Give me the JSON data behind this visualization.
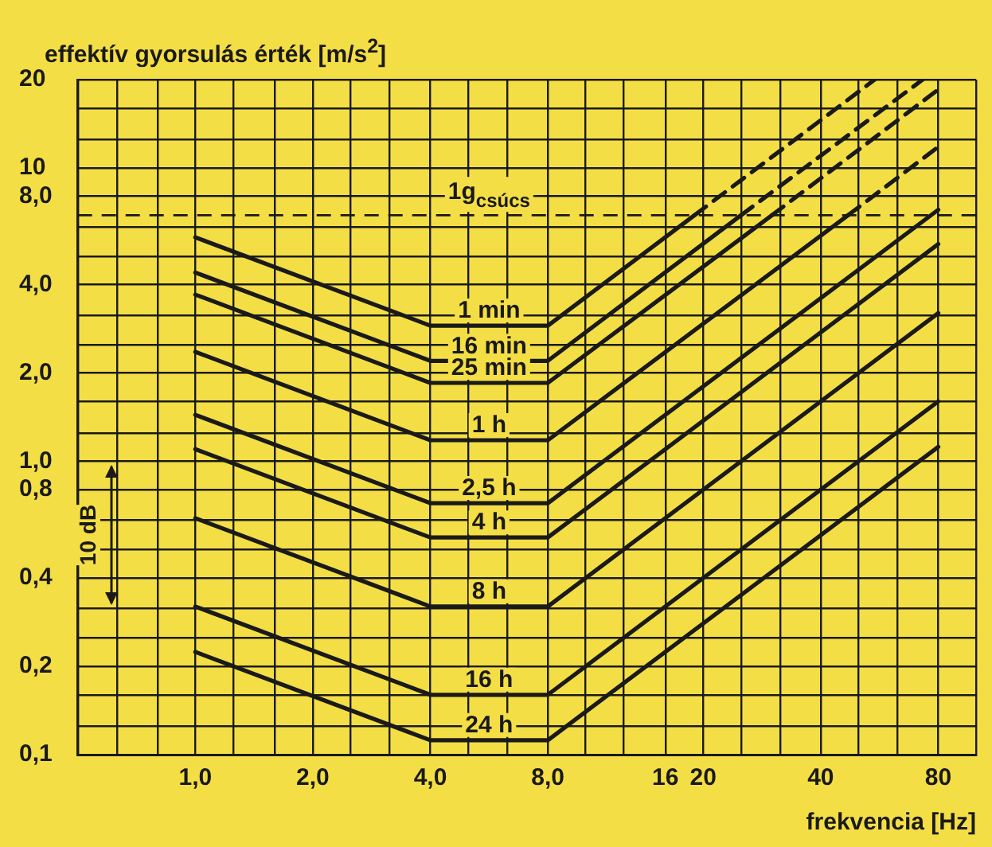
{
  "chart_data": {
    "type": "line",
    "ylabel": "effektív gyorsulás érték [m/s$^{2}$]",
    "xlabel": "frekvencia [Hz]",
    "log": "xy",
    "grid": true,
    "legend": false,
    "marker": "none",
    "xlim": [
      0.5,
      100
    ],
    "xticks": [
      {
        "value": 0.5,
        "label": null
      },
      {
        "value": 0.63,
        "label": null
      },
      {
        "value": 0.8,
        "label": null
      },
      {
        "value": 1,
        "label": "1,0"
      },
      {
        "value": 1.25,
        "label": null
      },
      {
        "value": 1.6,
        "label": null
      },
      {
        "value": 2,
        "label": "2,0"
      },
      {
        "value": 2.5,
        "label": null
      },
      {
        "value": 3.15,
        "label": null
      },
      {
        "value": 4,
        "label": "4,0"
      },
      {
        "value": 5,
        "label": null
      },
      {
        "value": 6.3,
        "label": null
      },
      {
        "value": 8,
        "label": "8,0"
      },
      {
        "value": 10,
        "label": null
      },
      {
        "value": 12.5,
        "label": null
      },
      16,
      20,
      {
        "value": 25,
        "label": null
      },
      {
        "value": 31.5,
        "label": null
      },
      40,
      {
        "value": 50,
        "label": null
      },
      {
        "value": 63,
        "label": null
      },
      80,
      {
        "value": 100,
        "label": null
      }
    ],
    "ylim": [
      0.1,
      20
    ],
    "yticks": [
      {
        "value": 0.1,
        "label": "0,1"
      },
      {
        "value": 0.125,
        "label": null
      },
      {
        "value": 0.16,
        "label": null
      },
      {
        "value": 0.2,
        "label": "0,2"
      },
      {
        "value": 0.25,
        "label": null
      },
      {
        "value": 0.315,
        "label": null
      },
      {
        "value": 0.4,
        "label": "0,4"
      },
      {
        "value": 0.5,
        "label": null
      },
      {
        "value": 0.63,
        "label": null
      },
      {
        "value": 0.8,
        "label": "0,8"
      },
      {
        "value": 1,
        "label": "1,0"
      },
      {
        "value": 1.25,
        "label": null
      },
      {
        "value": 1.6,
        "label": null
      },
      {
        "value": 2,
        "label": "2,0"
      },
      {
        "value": 2.5,
        "label": null
      },
      {
        "value": 3.15,
        "label": null
      },
      {
        "value": 4,
        "label": "4,0"
      },
      {
        "value": 5,
        "label": null
      },
      {
        "value": 6.3,
        "label": null
      },
      {
        "value": 8,
        "label": "8,0"
      },
      10,
      {
        "value": 12.5,
        "label": null
      },
      {
        "value": 16,
        "label": null
      },
      20
    ],
    "series": [
      {
        "name": "1 min",
        "color": "#1a1a1a",
        "x": [
          1,
          4,
          8,
          19
        ],
        "values": [
          5.8,
          2.9,
          2.9,
          6.9
        ]
      },
      {
        "color": "#1a1a1a",
        "line_style": "dashed",
        "x": [
          19,
          55
        ],
        "values": [
          6.9,
          20
        ]
      },
      {
        "name": "16 min",
        "color": "#1a1a1a",
        "x": [
          1,
          4,
          8,
          25
        ],
        "values": [
          4.4,
          2.2,
          2.2,
          6.9
        ]
      },
      {
        "color": "#1a1a1a",
        "line_style": "dashed",
        "x": [
          25,
          73
        ],
        "values": [
          6.9,
          20
        ]
      },
      {
        "name": "25 min",
        "color": "#1a1a1a",
        "x": [
          1,
          4,
          8,
          30
        ],
        "values": [
          3.7,
          1.85,
          1.85,
          6.9
        ]
      },
      {
        "color": "#1a1a1a",
        "line_style": "dashed",
        "x": [
          30,
          80
        ],
        "values": [
          6.9,
          18.5
        ]
      },
      {
        "name": "1 h",
        "color": "#1a1a1a",
        "x": [
          1,
          4,
          8,
          47
        ],
        "values": [
          2.36,
          1.18,
          1.18,
          6.9
        ]
      },
      {
        "color": "#1a1a1a",
        "line_style": "dashed",
        "x": [
          47,
          80
        ],
        "values": [
          6.9,
          11.8
        ]
      },
      {
        "name": "2,5 h",
        "color": "#1a1a1a",
        "x": [
          1,
          4,
          8,
          80
        ],
        "values": [
          1.44,
          0.72,
          0.72,
          7.2
        ]
      },
      {
        "name": "4 h",
        "color": "#1a1a1a",
        "x": [
          1,
          4,
          8,
          80
        ],
        "values": [
          1.1,
          0.55,
          0.55,
          5.5
        ]
      },
      {
        "name": "8 h",
        "color": "#1a1a1a",
        "x": [
          1,
          4,
          8,
          80
        ],
        "values": [
          0.64,
          0.32,
          0.32,
          3.2
        ]
      },
      {
        "name": "16 h",
        "color": "#1a1a1a",
        "x": [
          1,
          4,
          8,
          80
        ],
        "values": [
          0.32,
          0.16,
          0.16,
          1.6
        ]
      },
      {
        "name": "24 h",
        "color": "#1a1a1a",
        "x": [
          1,
          4,
          8,
          80
        ],
        "values": [
          0.224,
          0.112,
          0.112,
          1.12
        ]
      }
    ],
    "ref_lines": [
      {
        "axis": "y",
        "value": 6.9,
        "label": "1g$_{csúcs}$",
        "line_style": "dashed",
        "color": "#1a1a1a"
      }
    ],
    "annotations": [
      "10 dB"
    ]
  }
}
